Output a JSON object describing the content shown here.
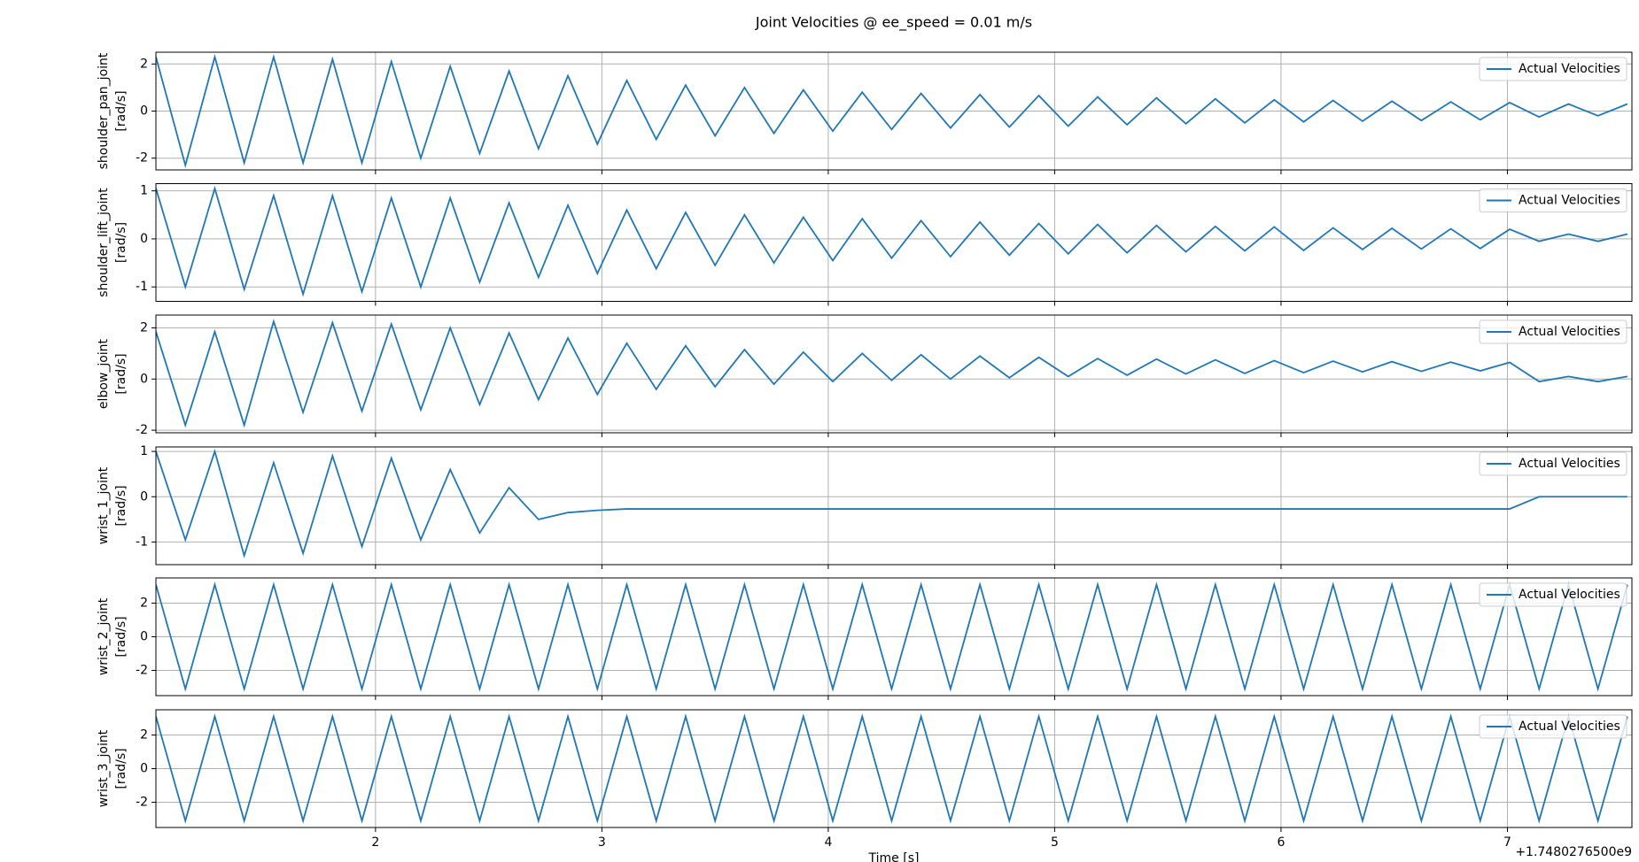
{
  "figure": {
    "title": "Joint Velocities @ ee_speed = 0.01 m/s",
    "xlabel": "Time [s]",
    "x_offset_label": "+1.7480276500e9"
  },
  "chart_data": [
    {
      "type": "line",
      "ylabel": [
        "shoulder_pan_joint",
        "[rad/s]"
      ],
      "grid": true,
      "legend": "upper right",
      "x": [
        1.03,
        1.16,
        1.29,
        1.42,
        1.55,
        1.68,
        1.81,
        1.94,
        2.07,
        2.2,
        2.33,
        2.46,
        2.59,
        2.72,
        2.85,
        2.98,
        3.11,
        3.24,
        3.37,
        3.5,
        3.63,
        3.76,
        3.89,
        4.02,
        4.15,
        4.28,
        4.41,
        4.54,
        4.67,
        4.8,
        4.93,
        5.06,
        5.19,
        5.32,
        5.45,
        5.58,
        5.71,
        5.84,
        5.97,
        6.1,
        6.23,
        6.36,
        6.49,
        6.62,
        6.75,
        6.88,
        7.01,
        7.14,
        7.27,
        7.4,
        7.53
      ],
      "xlim": [
        1.03,
        7.55
      ],
      "xticks": [
        2,
        3,
        4,
        5,
        6,
        7
      ],
      "ylim": [
        -2.5,
        2.5
      ],
      "yticks": [
        -2,
        0,
        2
      ],
      "series": [
        {
          "name": "Actual Velocities",
          "color": "#1f77b4",
          "values": [
            2.3,
            -2.3,
            2.3,
            -2.2,
            2.3,
            -2.2,
            2.2,
            -2.2,
            2.1,
            -2.0,
            1.9,
            -1.8,
            1.7,
            -1.6,
            1.5,
            -1.4,
            1.3,
            -1.2,
            1.1,
            -1.05,
            1.0,
            -0.95,
            0.9,
            -0.85,
            0.8,
            -0.78,
            0.75,
            -0.72,
            0.7,
            -0.68,
            0.66,
            -0.64,
            0.6,
            -0.58,
            0.56,
            -0.54,
            0.52,
            -0.5,
            0.48,
            -0.46,
            0.45,
            -0.43,
            0.42,
            -0.4,
            0.39,
            -0.37,
            0.36,
            -0.25,
            0.3,
            -0.2,
            0.3
          ]
        }
      ]
    },
    {
      "type": "line",
      "ylabel": [
        "shoulder_lift_joint",
        "[rad/s]"
      ],
      "grid": true,
      "legend": "upper right",
      "x": [
        1.03,
        1.16,
        1.29,
        1.42,
        1.55,
        1.68,
        1.81,
        1.94,
        2.07,
        2.2,
        2.33,
        2.46,
        2.59,
        2.72,
        2.85,
        2.98,
        3.11,
        3.24,
        3.37,
        3.5,
        3.63,
        3.76,
        3.89,
        4.02,
        4.15,
        4.28,
        4.41,
        4.54,
        4.67,
        4.8,
        4.93,
        5.06,
        5.19,
        5.32,
        5.45,
        5.58,
        5.71,
        5.84,
        5.97,
        6.1,
        6.23,
        6.36,
        6.49,
        6.62,
        6.75,
        6.88,
        7.01,
        7.14,
        7.27,
        7.4,
        7.53
      ],
      "xlim": [
        1.03,
        7.55
      ],
      "xticks": [
        2,
        3,
        4,
        5,
        6,
        7
      ],
      "ylim": [
        -1.3,
        1.15
      ],
      "yticks": [
        -1,
        0,
        1
      ],
      "series": [
        {
          "name": "Actual Velocities",
          "color": "#1f77b4",
          "values": [
            1.05,
            -1.0,
            1.05,
            -1.05,
            0.9,
            -1.15,
            0.9,
            -1.1,
            0.85,
            -1.0,
            0.85,
            -0.9,
            0.75,
            -0.8,
            0.7,
            -0.72,
            0.6,
            -0.62,
            0.55,
            -0.55,
            0.5,
            -0.5,
            0.45,
            -0.45,
            0.42,
            -0.4,
            0.38,
            -0.37,
            0.35,
            -0.34,
            0.32,
            -0.31,
            0.3,
            -0.29,
            0.28,
            -0.27,
            0.26,
            -0.25,
            0.25,
            -0.24,
            0.23,
            -0.22,
            0.22,
            -0.21,
            0.21,
            -0.2,
            0.2,
            -0.05,
            0.1,
            -0.05,
            0.1
          ]
        }
      ]
    },
    {
      "type": "line",
      "ylabel": [
        "elbow_joint",
        "[rad/s]"
      ],
      "grid": true,
      "legend": "upper right",
      "x": [
        1.03,
        1.16,
        1.29,
        1.42,
        1.55,
        1.68,
        1.81,
        1.94,
        2.07,
        2.2,
        2.33,
        2.46,
        2.59,
        2.72,
        2.85,
        2.98,
        3.11,
        3.24,
        3.37,
        3.5,
        3.63,
        3.76,
        3.89,
        4.02,
        4.15,
        4.28,
        4.41,
        4.54,
        4.67,
        4.8,
        4.93,
        5.06,
        5.19,
        5.32,
        5.45,
        5.58,
        5.71,
        5.84,
        5.97,
        6.1,
        6.23,
        6.36,
        6.49,
        6.62,
        6.75,
        6.88,
        7.01,
        7.14,
        7.27,
        7.4,
        7.53
      ],
      "xlim": [
        1.03,
        7.55
      ],
      "xticks": [
        2,
        3,
        4,
        5,
        6,
        7
      ],
      "ylim": [
        -2.1,
        2.5
      ],
      "yticks": [
        -2,
        0,
        2
      ],
      "series": [
        {
          "name": "Actual Velocities",
          "color": "#1f77b4",
          "values": [
            1.85,
            -1.8,
            1.85,
            -1.8,
            2.25,
            -1.3,
            2.2,
            -1.25,
            2.15,
            -1.2,
            2.0,
            -1.0,
            1.8,
            -0.8,
            1.6,
            -0.6,
            1.4,
            -0.4,
            1.3,
            -0.3,
            1.15,
            -0.2,
            1.05,
            -0.1,
            1.0,
            -0.05,
            0.95,
            0.0,
            0.9,
            0.05,
            0.85,
            0.1,
            0.8,
            0.15,
            0.78,
            0.2,
            0.75,
            0.22,
            0.72,
            0.25,
            0.7,
            0.28,
            0.68,
            0.3,
            0.66,
            0.32,
            0.65,
            -0.1,
            0.1,
            -0.1,
            0.1
          ]
        }
      ]
    },
    {
      "type": "line",
      "ylabel": [
        "wrist_1_joint",
        "[rad/s]"
      ],
      "grid": true,
      "legend": "upper right",
      "x": [
        1.03,
        1.16,
        1.29,
        1.42,
        1.55,
        1.68,
        1.81,
        1.94,
        2.07,
        2.2,
        2.33,
        2.46,
        2.59,
        2.72,
        2.85,
        2.98,
        3.11,
        3.24,
        3.37,
        3.5,
        3.63,
        3.76,
        3.89,
        4.02,
        4.15,
        4.28,
        4.41,
        4.54,
        4.67,
        4.8,
        4.93,
        5.06,
        5.19,
        5.32,
        5.45,
        5.58,
        5.71,
        5.84,
        5.97,
        6.1,
        6.23,
        6.36,
        6.49,
        6.62,
        6.75,
        6.88,
        7.01,
        7.14,
        7.27,
        7.4,
        7.53
      ],
      "xlim": [
        1.03,
        7.55
      ],
      "xticks": [
        2,
        3,
        4,
        5,
        6,
        7
      ],
      "ylim": [
        -1.5,
        1.1
      ],
      "yticks": [
        -1,
        0,
        1
      ],
      "series": [
        {
          "name": "Actual Velocities",
          "color": "#1f77b4",
          "values": [
            1.0,
            -0.95,
            1.0,
            -1.3,
            0.75,
            -1.25,
            0.9,
            -1.1,
            0.85,
            -0.95,
            0.6,
            -0.8,
            0.2,
            -0.5,
            -0.35,
            -0.3,
            -0.27,
            -0.27,
            -0.27,
            -0.27,
            -0.27,
            -0.27,
            -0.27,
            -0.27,
            -0.27,
            -0.27,
            -0.27,
            -0.27,
            -0.27,
            -0.27,
            -0.27,
            -0.27,
            -0.27,
            -0.27,
            -0.27,
            -0.27,
            -0.27,
            -0.27,
            -0.27,
            -0.27,
            -0.27,
            -0.27,
            -0.27,
            -0.27,
            -0.27,
            -0.27,
            -0.27,
            0.0,
            0.0,
            0.0,
            0.0
          ]
        }
      ]
    },
    {
      "type": "line",
      "ylabel": [
        "wrist_2_joint",
        "[rad/s]"
      ],
      "grid": true,
      "legend": "upper right",
      "x": [
        1.03,
        1.16,
        1.29,
        1.42,
        1.55,
        1.68,
        1.81,
        1.94,
        2.07,
        2.2,
        2.33,
        2.46,
        2.59,
        2.72,
        2.85,
        2.98,
        3.11,
        3.24,
        3.37,
        3.5,
        3.63,
        3.76,
        3.89,
        4.02,
        4.15,
        4.28,
        4.41,
        4.54,
        4.67,
        4.8,
        4.93,
        5.06,
        5.19,
        5.32,
        5.45,
        5.58,
        5.71,
        5.84,
        5.97,
        6.1,
        6.23,
        6.36,
        6.49,
        6.62,
        6.75,
        6.88,
        7.01,
        7.14,
        7.27,
        7.4,
        7.53
      ],
      "xlim": [
        1.03,
        7.55
      ],
      "xticks": [
        2,
        3,
        4,
        5,
        6,
        7
      ],
      "ylim": [
        -3.5,
        3.5
      ],
      "yticks": [
        -2,
        0,
        2
      ],
      "series": [
        {
          "name": "Actual Velocities",
          "color": "#1f77b4",
          "values": [
            3.1,
            -3.1,
            3.1,
            -3.1,
            3.1,
            -3.1,
            3.1,
            -3.1,
            3.1,
            -3.1,
            3.1,
            -3.1,
            3.1,
            -3.1,
            3.1,
            -3.1,
            3.1,
            -3.1,
            3.1,
            -3.1,
            3.1,
            -3.1,
            3.1,
            -3.1,
            3.1,
            -3.1,
            3.1,
            -3.1,
            3.1,
            -3.1,
            3.1,
            -3.1,
            3.1,
            -3.1,
            3.1,
            -3.1,
            3.1,
            -3.1,
            3.1,
            -3.1,
            3.1,
            -3.1,
            3.1,
            -3.1,
            3.1,
            -3.1,
            3.1,
            -3.1,
            3.1,
            -3.1,
            3.1
          ]
        }
      ]
    },
    {
      "type": "line",
      "ylabel": [
        "wrist_3_joint",
        "[rad/s]"
      ],
      "grid": true,
      "legend": "upper right",
      "x": [
        1.03,
        1.16,
        1.29,
        1.42,
        1.55,
        1.68,
        1.81,
        1.94,
        2.07,
        2.2,
        2.33,
        2.46,
        2.59,
        2.72,
        2.85,
        2.98,
        3.11,
        3.24,
        3.37,
        3.5,
        3.63,
        3.76,
        3.89,
        4.02,
        4.15,
        4.28,
        4.41,
        4.54,
        4.67,
        4.8,
        4.93,
        5.06,
        5.19,
        5.32,
        5.45,
        5.58,
        5.71,
        5.84,
        5.97,
        6.1,
        6.23,
        6.36,
        6.49,
        6.62,
        6.75,
        6.88,
        7.01,
        7.14,
        7.27,
        7.4,
        7.53
      ],
      "xlim": [
        1.03,
        7.55
      ],
      "xticks": [
        2,
        3,
        4,
        5,
        6,
        7
      ],
      "ylim": [
        -3.5,
        3.5
      ],
      "yticks": [
        -2,
        0,
        2
      ],
      "series": [
        {
          "name": "Actual Velocities",
          "color": "#1f77b4",
          "values": [
            3.1,
            -3.1,
            3.1,
            -3.1,
            3.1,
            -3.1,
            3.1,
            -3.1,
            3.1,
            -3.1,
            3.1,
            -3.1,
            3.1,
            -3.1,
            3.1,
            -3.1,
            3.1,
            -3.1,
            3.1,
            -3.1,
            3.1,
            -3.1,
            3.1,
            -3.1,
            3.1,
            -3.1,
            3.1,
            -3.1,
            3.1,
            -3.1,
            3.1,
            -3.1,
            3.1,
            -3.1,
            3.1,
            -3.1,
            3.1,
            -3.1,
            3.1,
            -3.1,
            3.1,
            -3.1,
            3.1,
            -3.1,
            3.1,
            -3.1,
            3.1,
            -3.1,
            3.1,
            -3.1,
            3.1
          ]
        }
      ]
    }
  ]
}
